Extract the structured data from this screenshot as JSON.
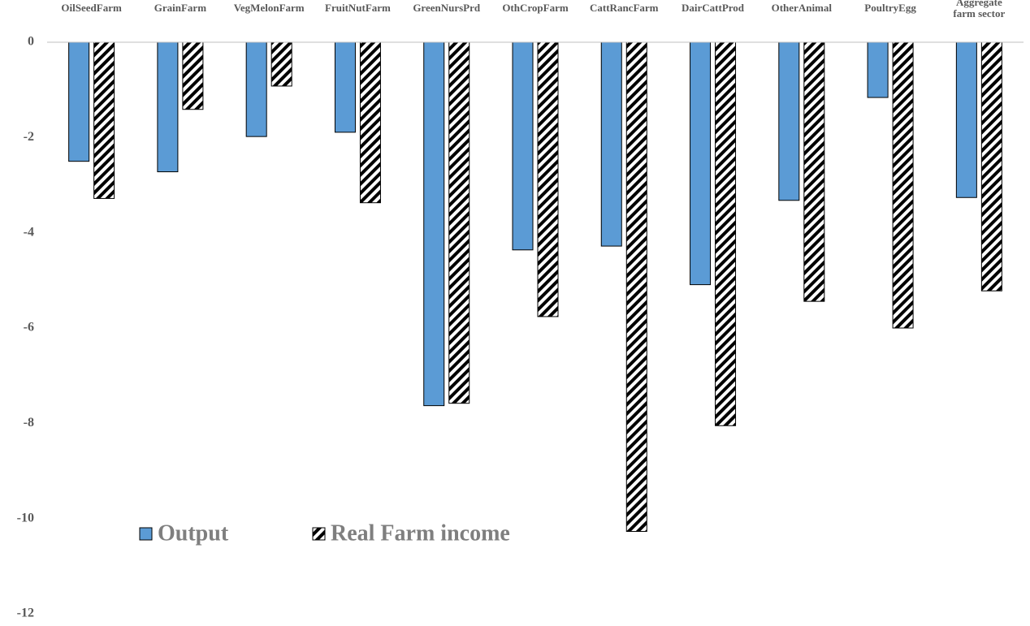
{
  "chart_data": {
    "type": "bar",
    "categories": [
      "OilSeedFarm",
      "GrainFarm",
      "VegMelonFarm",
      "FruitNutFarm",
      "GreenNursPrd",
      "OthCropFarm",
      "CattRancFarm",
      "DairCattProd",
      "OtherAnimal",
      "PoultryEgg",
      "Aggregate farm sector"
    ],
    "series": [
      {
        "name": "Output",
        "color": "#5b9bd5",
        "values": [
          -2.5,
          -2.72,
          -1.98,
          -1.89,
          -7.63,
          -4.36,
          -4.28,
          -5.09,
          -3.32,
          -1.16,
          -3.26
        ]
      },
      {
        "name": "Real Farm income",
        "color": "#000000",
        "pattern": "hatch",
        "values": [
          -3.28,
          -1.41,
          -0.92,
          -3.37,
          -7.58,
          -5.76,
          -10.27,
          -8.05,
          -5.44,
          -6.0,
          -5.22
        ]
      }
    ],
    "ylim": [
      -12,
      0
    ],
    "yticks": [
      0,
      -2,
      -4,
      -6,
      -8,
      -10,
      -12
    ],
    "grid": false
  }
}
